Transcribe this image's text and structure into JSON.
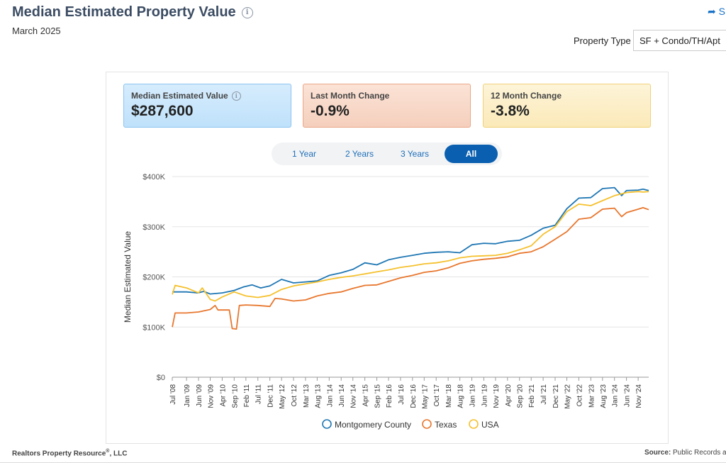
{
  "header": {
    "title": "Median Estimated Property Value",
    "date": "March 2025",
    "share_label": "S",
    "property_type_label": "Property Type",
    "property_type_value": "SF + Condo/TH/Apt"
  },
  "cards": [
    {
      "label": "Median Estimated Value",
      "value": "$287,600"
    },
    {
      "label": "Last Month Change",
      "value": "-0.9%"
    },
    {
      "label": "12 Month Change",
      "value": "-3.8%"
    }
  ],
  "tabs": [
    "1 Year",
    "2 Years",
    "3 Years",
    "All"
  ],
  "active_tab": "All",
  "footer": {
    "left": "Realtors Property Resource",
    "left_mark": "®",
    "left_suffix": ", LLC",
    "source_label": "Source:",
    "source_text": "Public Records a"
  },
  "chart_data": {
    "type": "line",
    "ylabel": "Median Estimated Value",
    "xlabel": "",
    "ylim": [
      0,
      400000
    ],
    "yticks": [
      0,
      100000,
      200000,
      300000,
      400000
    ],
    "ytick_labels": [
      "$0",
      "$100K",
      "$200K",
      "$300K",
      "$400K"
    ],
    "xlim": [
      2008.5,
      2025.2
    ],
    "xticks": [
      {
        "label": "Jul '08",
        "t": 2008.5
      },
      {
        "label": "Jan '09",
        "t": 2009.0
      },
      {
        "label": "Jun '09",
        "t": 2009.42
      },
      {
        "label": "Nov '09",
        "t": 2009.83
      },
      {
        "label": "Apr '10",
        "t": 2010.25
      },
      {
        "label": "Sep '10",
        "t": 2010.67
      },
      {
        "label": "Feb '11",
        "t": 2011.08
      },
      {
        "label": "Jul '11",
        "t": 2011.5
      },
      {
        "label": "Dec '11",
        "t": 2011.92
      },
      {
        "label": "May '12",
        "t": 2012.33
      },
      {
        "label": "Oct '12",
        "t": 2012.75
      },
      {
        "label": "Mar '13",
        "t": 2013.17
      },
      {
        "label": "Aug '13",
        "t": 2013.58
      },
      {
        "label": "Jan '14",
        "t": 2014.0
      },
      {
        "label": "Jun '14",
        "t": 2014.42
      },
      {
        "label": "Nov '14",
        "t": 2014.83
      },
      {
        "label": "Apr '15",
        "t": 2015.25
      },
      {
        "label": "Sep '15",
        "t": 2015.67
      },
      {
        "label": "Feb '16",
        "t": 2016.08
      },
      {
        "label": "Jul '16",
        "t": 2016.5
      },
      {
        "label": "Dec '16",
        "t": 2016.92
      },
      {
        "label": "May '17",
        "t": 2017.33
      },
      {
        "label": "Oct '17",
        "t": 2017.75
      },
      {
        "label": "Mar '18",
        "t": 2018.17
      },
      {
        "label": "Aug '18",
        "t": 2018.58
      },
      {
        "label": "Jan '19",
        "t": 2019.0
      },
      {
        "label": "Jun '19",
        "t": 2019.42
      },
      {
        "label": "Nov '19",
        "t": 2019.83
      },
      {
        "label": "Apr '20",
        "t": 2020.25
      },
      {
        "label": "Sep '20",
        "t": 2020.67
      },
      {
        "label": "Feb '21",
        "t": 2021.08
      },
      {
        "label": "Jul '21",
        "t": 2021.5
      },
      {
        "label": "Dec '21",
        "t": 2021.92
      },
      {
        "label": "May '22",
        "t": 2022.33
      },
      {
        "label": "Oct '22",
        "t": 2022.75
      },
      {
        "label": "Mar '23",
        "t": 2023.17
      },
      {
        "label": "Aug '23",
        "t": 2023.58
      },
      {
        "label": "Jan '24",
        "t": 2024.0
      },
      {
        "label": "Jun '24",
        "t": 2024.42
      },
      {
        "label": "Nov '24",
        "t": 2024.83
      }
    ],
    "series": [
      {
        "name": "Montgomery County",
        "color": "#1f77b4",
        "points": [
          [
            2008.5,
            170000
          ],
          [
            2009.0,
            170000
          ],
          [
            2009.4,
            168000
          ],
          [
            2009.6,
            171000
          ],
          [
            2009.83,
            166000
          ],
          [
            2010.25,
            168000
          ],
          [
            2010.67,
            173000
          ],
          [
            2011.0,
            180000
          ],
          [
            2011.3,
            184000
          ],
          [
            2011.6,
            178000
          ],
          [
            2011.92,
            182000
          ],
          [
            2012.33,
            195000
          ],
          [
            2012.75,
            188000
          ],
          [
            2013.17,
            190000
          ],
          [
            2013.58,
            192000
          ],
          [
            2014.0,
            203000
          ],
          [
            2014.42,
            208000
          ],
          [
            2014.83,
            215000
          ],
          [
            2015.25,
            228000
          ],
          [
            2015.67,
            224000
          ],
          [
            2016.08,
            234000
          ],
          [
            2016.5,
            239000
          ],
          [
            2016.92,
            243000
          ],
          [
            2017.33,
            247000
          ],
          [
            2017.75,
            249000
          ],
          [
            2018.17,
            250000
          ],
          [
            2018.58,
            248000
          ],
          [
            2019.0,
            264000
          ],
          [
            2019.42,
            267000
          ],
          [
            2019.83,
            266000
          ],
          [
            2020.25,
            271000
          ],
          [
            2020.67,
            273000
          ],
          [
            2021.08,
            283000
          ],
          [
            2021.5,
            297000
          ],
          [
            2021.92,
            303000
          ],
          [
            2022.33,
            336000
          ],
          [
            2022.75,
            357000
          ],
          [
            2023.17,
            358000
          ],
          [
            2023.58,
            376000
          ],
          [
            2024.0,
            378000
          ],
          [
            2024.25,
            362000
          ],
          [
            2024.42,
            372000
          ],
          [
            2024.83,
            373000
          ],
          [
            2025.0,
            375000
          ],
          [
            2025.2,
            372000
          ]
        ]
      },
      {
        "name": "Texas",
        "color": "#e8772e",
        "points": [
          [
            2008.5,
            100000
          ],
          [
            2008.6,
            128000
          ],
          [
            2009.0,
            128000
          ],
          [
            2009.42,
            130000
          ],
          [
            2009.83,
            135000
          ],
          [
            2010.0,
            143000
          ],
          [
            2010.1,
            134000
          ],
          [
            2010.5,
            134000
          ],
          [
            2010.6,
            97000
          ],
          [
            2010.75,
            96000
          ],
          [
            2010.85,
            143000
          ],
          [
            2011.08,
            144000
          ],
          [
            2011.5,
            143000
          ],
          [
            2011.92,
            141000
          ],
          [
            2012.1,
            157000
          ],
          [
            2012.33,
            156000
          ],
          [
            2012.75,
            152000
          ],
          [
            2013.17,
            154000
          ],
          [
            2013.58,
            162000
          ],
          [
            2014.0,
            167000
          ],
          [
            2014.42,
            170000
          ],
          [
            2014.83,
            177000
          ],
          [
            2015.25,
            183000
          ],
          [
            2015.67,
            184000
          ],
          [
            2016.08,
            191000
          ],
          [
            2016.5,
            198000
          ],
          [
            2016.92,
            203000
          ],
          [
            2017.33,
            209000
          ],
          [
            2017.75,
            212000
          ],
          [
            2018.17,
            218000
          ],
          [
            2018.58,
            227000
          ],
          [
            2019.0,
            232000
          ],
          [
            2019.42,
            235000
          ],
          [
            2019.83,
            237000
          ],
          [
            2020.25,
            240000
          ],
          [
            2020.67,
            247000
          ],
          [
            2021.08,
            250000
          ],
          [
            2021.5,
            260000
          ],
          [
            2021.92,
            275000
          ],
          [
            2022.33,
            290000
          ],
          [
            2022.75,
            315000
          ],
          [
            2023.17,
            318000
          ],
          [
            2023.58,
            335000
          ],
          [
            2024.0,
            337000
          ],
          [
            2024.25,
            320000
          ],
          [
            2024.42,
            328000
          ],
          [
            2024.83,
            335000
          ],
          [
            2025.0,
            338000
          ],
          [
            2025.2,
            334000
          ]
        ]
      },
      {
        "name": "USA",
        "color": "#f5c12e",
        "points": [
          [
            2008.5,
            165000
          ],
          [
            2008.6,
            183000
          ],
          [
            2009.0,
            178000
          ],
          [
            2009.42,
            168000
          ],
          [
            2009.55,
            178000
          ],
          [
            2009.83,
            155000
          ],
          [
            2010.0,
            152000
          ],
          [
            2010.25,
            160000
          ],
          [
            2010.67,
            170000
          ],
          [
            2011.08,
            162000
          ],
          [
            2011.5,
            159000
          ],
          [
            2011.92,
            163000
          ],
          [
            2012.33,
            175000
          ],
          [
            2012.75,
            182000
          ],
          [
            2013.17,
            186000
          ],
          [
            2013.58,
            190000
          ],
          [
            2014.0,
            195000
          ],
          [
            2014.42,
            199000
          ],
          [
            2014.83,
            202000
          ],
          [
            2015.25,
            206000
          ],
          [
            2015.67,
            210000
          ],
          [
            2016.08,
            214000
          ],
          [
            2016.5,
            219000
          ],
          [
            2016.92,
            222000
          ],
          [
            2017.33,
            226000
          ],
          [
            2017.75,
            228000
          ],
          [
            2018.17,
            232000
          ],
          [
            2018.58,
            238000
          ],
          [
            2019.0,
            241000
          ],
          [
            2019.42,
            242000
          ],
          [
            2019.83,
            243000
          ],
          [
            2020.25,
            247000
          ],
          [
            2020.67,
            254000
          ],
          [
            2021.08,
            262000
          ],
          [
            2021.5,
            285000
          ],
          [
            2021.92,
            300000
          ],
          [
            2022.33,
            330000
          ],
          [
            2022.75,
            345000
          ],
          [
            2023.17,
            342000
          ],
          [
            2023.58,
            352000
          ],
          [
            2024.0,
            362000
          ],
          [
            2024.42,
            368000
          ],
          [
            2024.83,
            370000
          ],
          [
            2025.0,
            369000
          ],
          [
            2025.2,
            370000
          ]
        ]
      }
    ],
    "legend": [
      "Montgomery County",
      "Texas",
      "USA"
    ],
    "legend_position": "bottom-center",
    "grid": true
  }
}
